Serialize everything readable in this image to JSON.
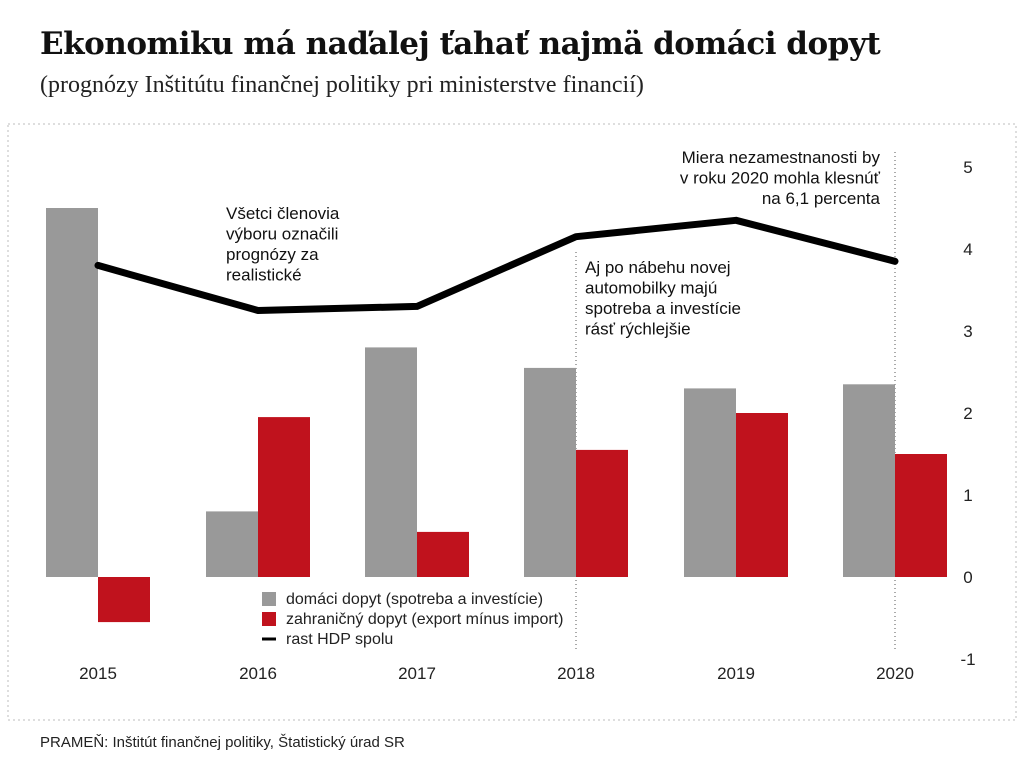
{
  "header": {
    "title": "Ekonomiku má naďalej ťahať najmä domáci dopyt",
    "subtitle": "(prognózy Inštitútu finančnej politiky pri ministerstve financií)"
  },
  "source": "PRAMEŇ: Inštitút finančnej politiky, Štatistický úrad SR",
  "colors": {
    "domestic": "#999999",
    "foreign": "#c0121d",
    "gdp": "#000000",
    "frame": "#bdbdbd"
  },
  "chart_data": {
    "type": "bar",
    "title": "Ekonomiku má naďalej ťahať najmä domáci dopyt",
    "subtitle": "(prognózy Inštitútu finančnej politiky pri ministerstve financií)",
    "categories": [
      "2015",
      "2016",
      "2017",
      "2018",
      "2019",
      "2020"
    ],
    "series": [
      {
        "name": "domáci dopyt (spotreba a investície)",
        "type": "bar",
        "values": [
          4.5,
          0.8,
          2.8,
          2.55,
          2.3,
          2.35
        ]
      },
      {
        "name": "zahraničný dopyt (export mínus import)",
        "type": "bar",
        "values": [
          -0.55,
          1.95,
          0.55,
          1.55,
          2.0,
          1.5
        ]
      },
      {
        "name": "rast HDP spolu",
        "type": "line",
        "values": [
          3.8,
          3.25,
          3.3,
          4.15,
          4.35,
          3.85
        ]
      }
    ],
    "ylim": [
      -1,
      5
    ],
    "yticks": [
      "-1",
      "0",
      "1",
      "2",
      "3",
      "4",
      "5"
    ],
    "grid": false,
    "legend_position": "bottom-center",
    "annotations": [
      {
        "lines": [
          "Všetci členovia",
          "výboru označili",
          "prognózy za",
          "realistické"
        ],
        "anchor": "start"
      },
      {
        "lines": [
          "Aj po nábehu novej",
          "automobilky majú",
          "spotreba a investície",
          "rásť rýchlejšie"
        ],
        "anchor": "start"
      },
      {
        "lines": [
          "Miera nezamestnanosti by",
          "v roku 2020 mohla klesnúť",
          "na 6,1 percenta"
        ],
        "anchor": "end"
      }
    ]
  }
}
